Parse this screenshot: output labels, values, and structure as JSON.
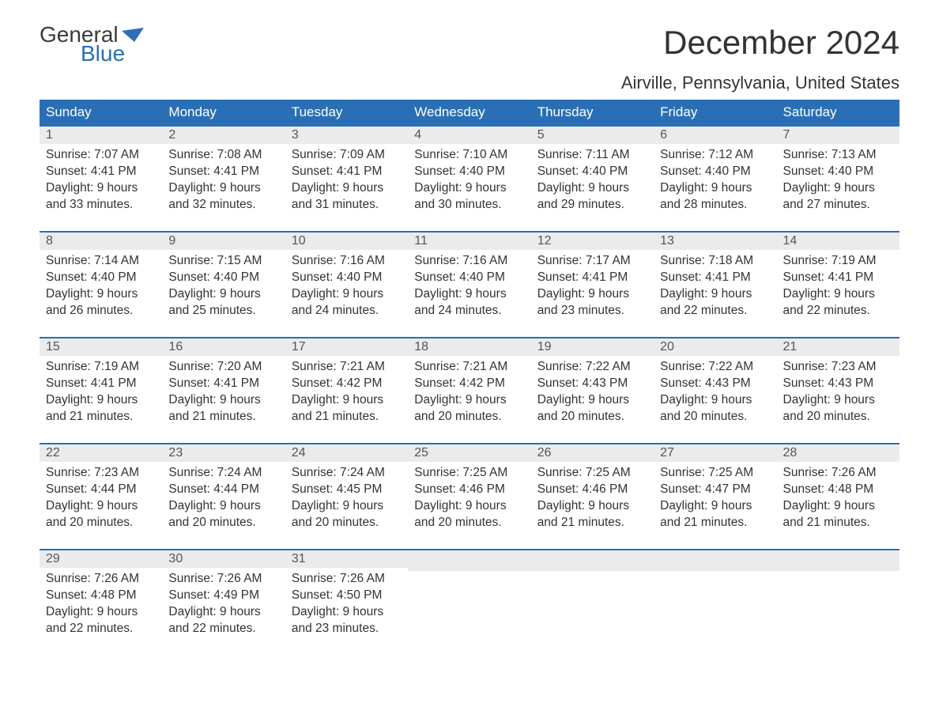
{
  "logo": {
    "word1": "General",
    "word2": "Blue",
    "flag_color": "#2a6fb5",
    "text_color_dark": "#3a3a3a"
  },
  "title": "December 2024",
  "location": "Airville, Pennsylvania, United States",
  "header_bg": "#2a6fb5",
  "header_fg": "#ffffff",
  "daynum_bg": "#ebebeb",
  "rule_color": "#2a6fb5",
  "text_color": "#333333",
  "columns": [
    "Sunday",
    "Monday",
    "Tuesday",
    "Wednesday",
    "Thursday",
    "Friday",
    "Saturday"
  ],
  "labels": {
    "sunrise": "Sunrise:",
    "sunset": "Sunset:",
    "daylight": "Daylight:"
  },
  "weeks": [
    [
      {
        "n": "1",
        "sunrise": "7:07 AM",
        "sunset": "4:41 PM",
        "daylight": "9 hours and 33 minutes."
      },
      {
        "n": "2",
        "sunrise": "7:08 AM",
        "sunset": "4:41 PM",
        "daylight": "9 hours and 32 minutes."
      },
      {
        "n": "3",
        "sunrise": "7:09 AM",
        "sunset": "4:41 PM",
        "daylight": "9 hours and 31 minutes."
      },
      {
        "n": "4",
        "sunrise": "7:10 AM",
        "sunset": "4:40 PM",
        "daylight": "9 hours and 30 minutes."
      },
      {
        "n": "5",
        "sunrise": "7:11 AM",
        "sunset": "4:40 PM",
        "daylight": "9 hours and 29 minutes."
      },
      {
        "n": "6",
        "sunrise": "7:12 AM",
        "sunset": "4:40 PM",
        "daylight": "9 hours and 28 minutes."
      },
      {
        "n": "7",
        "sunrise": "7:13 AM",
        "sunset": "4:40 PM",
        "daylight": "9 hours and 27 minutes."
      }
    ],
    [
      {
        "n": "8",
        "sunrise": "7:14 AM",
        "sunset": "4:40 PM",
        "daylight": "9 hours and 26 minutes."
      },
      {
        "n": "9",
        "sunrise": "7:15 AM",
        "sunset": "4:40 PM",
        "daylight": "9 hours and 25 minutes."
      },
      {
        "n": "10",
        "sunrise": "7:16 AM",
        "sunset": "4:40 PM",
        "daylight": "9 hours and 24 minutes."
      },
      {
        "n": "11",
        "sunrise": "7:16 AM",
        "sunset": "4:40 PM",
        "daylight": "9 hours and 24 minutes."
      },
      {
        "n": "12",
        "sunrise": "7:17 AM",
        "sunset": "4:41 PM",
        "daylight": "9 hours and 23 minutes."
      },
      {
        "n": "13",
        "sunrise": "7:18 AM",
        "sunset": "4:41 PM",
        "daylight": "9 hours and 22 minutes."
      },
      {
        "n": "14",
        "sunrise": "7:19 AM",
        "sunset": "4:41 PM",
        "daylight": "9 hours and 22 minutes."
      }
    ],
    [
      {
        "n": "15",
        "sunrise": "7:19 AM",
        "sunset": "4:41 PM",
        "daylight": "9 hours and 21 minutes."
      },
      {
        "n": "16",
        "sunrise": "7:20 AM",
        "sunset": "4:41 PM",
        "daylight": "9 hours and 21 minutes."
      },
      {
        "n": "17",
        "sunrise": "7:21 AM",
        "sunset": "4:42 PM",
        "daylight": "9 hours and 21 minutes."
      },
      {
        "n": "18",
        "sunrise": "7:21 AM",
        "sunset": "4:42 PM",
        "daylight": "9 hours and 20 minutes."
      },
      {
        "n": "19",
        "sunrise": "7:22 AM",
        "sunset": "4:43 PM",
        "daylight": "9 hours and 20 minutes."
      },
      {
        "n": "20",
        "sunrise": "7:22 AM",
        "sunset": "4:43 PM",
        "daylight": "9 hours and 20 minutes."
      },
      {
        "n": "21",
        "sunrise": "7:23 AM",
        "sunset": "4:43 PM",
        "daylight": "9 hours and 20 minutes."
      }
    ],
    [
      {
        "n": "22",
        "sunrise": "7:23 AM",
        "sunset": "4:44 PM",
        "daylight": "9 hours and 20 minutes."
      },
      {
        "n": "23",
        "sunrise": "7:24 AM",
        "sunset": "4:44 PM",
        "daylight": "9 hours and 20 minutes."
      },
      {
        "n": "24",
        "sunrise": "7:24 AM",
        "sunset": "4:45 PM",
        "daylight": "9 hours and 20 minutes."
      },
      {
        "n": "25",
        "sunrise": "7:25 AM",
        "sunset": "4:46 PM",
        "daylight": "9 hours and 20 minutes."
      },
      {
        "n": "26",
        "sunrise": "7:25 AM",
        "sunset": "4:46 PM",
        "daylight": "9 hours and 21 minutes."
      },
      {
        "n": "27",
        "sunrise": "7:25 AM",
        "sunset": "4:47 PM",
        "daylight": "9 hours and 21 minutes."
      },
      {
        "n": "28",
        "sunrise": "7:26 AM",
        "sunset": "4:48 PM",
        "daylight": "9 hours and 21 minutes."
      }
    ],
    [
      {
        "n": "29",
        "sunrise": "7:26 AM",
        "sunset": "4:48 PM",
        "daylight": "9 hours and 22 minutes."
      },
      {
        "n": "30",
        "sunrise": "7:26 AM",
        "sunset": "4:49 PM",
        "daylight": "9 hours and 22 minutes."
      },
      {
        "n": "31",
        "sunrise": "7:26 AM",
        "sunset": "4:50 PM",
        "daylight": "9 hours and 23 minutes."
      },
      null,
      null,
      null,
      null
    ]
  ]
}
